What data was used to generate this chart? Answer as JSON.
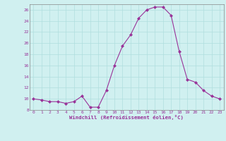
{
  "x": [
    0,
    1,
    2,
    3,
    4,
    5,
    6,
    7,
    8,
    9,
    10,
    11,
    12,
    13,
    14,
    15,
    16,
    17,
    18,
    19,
    20,
    21,
    22,
    23
  ],
  "y": [
    10,
    9.8,
    9.5,
    9.5,
    9.2,
    9.5,
    10.5,
    8.5,
    8.5,
    11.5,
    16,
    19.5,
    21.5,
    24.5,
    26,
    26.5,
    26.5,
    25,
    18.5,
    13.5,
    13,
    11.5,
    10.5,
    10
  ],
  "line_color": "#993399",
  "marker": "D",
  "marker_size": 2,
  "bg_color": "#d0f0f0",
  "grid_color": "#b0dede",
  "xlabel": "Windchill (Refroidissement éolien,°C)",
  "xlabel_color": "#993399",
  "tick_color": "#993399",
  "ylim": [
    8,
    27
  ],
  "yticks": [
    8,
    10,
    12,
    14,
    16,
    18,
    20,
    22,
    24,
    26
  ],
  "xticks": [
    0,
    1,
    2,
    3,
    4,
    5,
    6,
    7,
    8,
    9,
    10,
    11,
    12,
    13,
    14,
    15,
    16,
    17,
    18,
    19,
    20,
    21,
    22,
    23
  ],
  "figsize": [
    3.2,
    2.0
  ],
  "dpi": 100
}
